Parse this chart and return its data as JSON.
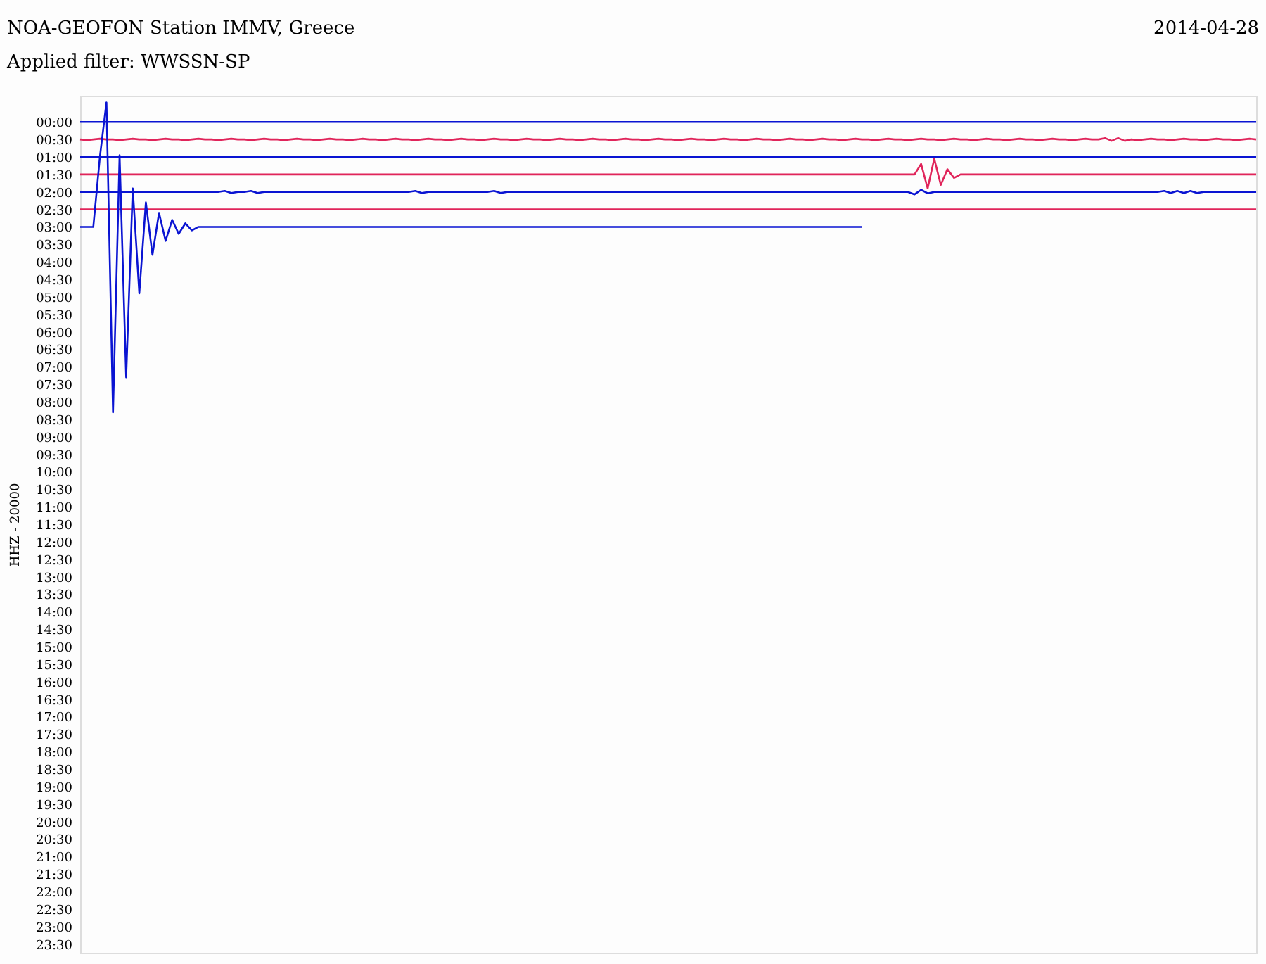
{
  "chart_data": {
    "type": "line",
    "title": "NOA-GEOFON Station IMMV, Greece",
    "subtitle": "Applied filter: WWSSN-SP",
    "annotations": [
      "2014-04-28"
    ],
    "ylabel": "HHZ - 20000",
    "categories": [
      null,
      null,
      null,
      null,
      null,
      null,
      null,
      null,
      null,
      null,
      null,
      null,
      null,
      null,
      null,
      null,
      null,
      null,
      null,
      null,
      null,
      null,
      null,
      null,
      null,
      null,
      null,
      null,
      null,
      null,
      null,
      null,
      null,
      null,
      null,
      null,
      null,
      null,
      null,
      null,
      null,
      null,
      null,
      null,
      null,
      null,
      null,
      null,
      null,
      null,
      null,
      null,
      null,
      null,
      null,
      null,
      null,
      null,
      null,
      null,
      null,
      null,
      null,
      null,
      null,
      null,
      null,
      null,
      null,
      null,
      null,
      null,
      null,
      null,
      null,
      null,
      null,
      null,
      null,
      null,
      null,
      null,
      null,
      null,
      null,
      null,
      null,
      null,
      null,
      null,
      null,
      null,
      null,
      null,
      null,
      null,
      null,
      null,
      null,
      null,
      null,
      null,
      null,
      null,
      null,
      null,
      null,
      null,
      null,
      null,
      null,
      null,
      null,
      null,
      null,
      null,
      null,
      null,
      null,
      null,
      null,
      null,
      null,
      null,
      null,
      null,
      null,
      null,
      null,
      null,
      null,
      null,
      null,
      null,
      null,
      null,
      null,
      null,
      null,
      null,
      null,
      null,
      null,
      null,
      null,
      null,
      null,
      null,
      null,
      null,
      null,
      null,
      null,
      null,
      null,
      null,
      null,
      null,
      null,
      null,
      null,
      null,
      null,
      null,
      null,
      null,
      null,
      null,
      null,
      null,
      null,
      null,
      null,
      null,
      null,
      null,
      null,
      null,
      null,
      null
    ],
    "ylim": [
      23.75,
      -0.75
    ],
    "tick_labels": "y",
    "grid": false,
    "legend": false,
    "marker": "none",
    "line_style": "solid",
    "yticks": [
      {
        "value": 0,
        "label": "00:00"
      },
      {
        "value": 0.5,
        "label": "00:30"
      },
      {
        "value": 1,
        "label": "01:00"
      },
      {
        "value": 1.5,
        "label": "01:30"
      },
      {
        "value": 2,
        "label": "02:00"
      },
      {
        "value": 2.5,
        "label": "02:30"
      },
      {
        "value": 3,
        "label": "03:00"
      },
      {
        "value": 3.5,
        "label": "03:30"
      },
      {
        "value": 4,
        "label": "04:00"
      },
      {
        "value": 4.5,
        "label": "04:30"
      },
      {
        "value": 5,
        "label": "05:00"
      },
      {
        "value": 5.5,
        "label": "05:30"
      },
      {
        "value": 6,
        "label": "06:00"
      },
      {
        "value": 6.5,
        "label": "06:30"
      },
      {
        "value": 7,
        "label": "07:00"
      },
      {
        "value": 7.5,
        "label": "07:30"
      },
      {
        "value": 8,
        "label": "08:00"
      },
      {
        "value": 8.5,
        "label": "08:30"
      },
      {
        "value": 9,
        "label": "09:00"
      },
      {
        "value": 9.5,
        "label": "09:30"
      },
      {
        "value": 10,
        "label": "10:00"
      },
      {
        "value": 10.5,
        "label": "10:30"
      },
      {
        "value": 11,
        "label": "11:00"
      },
      {
        "value": 11.5,
        "label": "11:30"
      },
      {
        "value": 12,
        "label": "12:00"
      },
      {
        "value": 12.5,
        "label": "12:30"
      },
      {
        "value": 13,
        "label": "13:00"
      },
      {
        "value": 13.5,
        "label": "13:30"
      },
      {
        "value": 14,
        "label": "14:00"
      },
      {
        "value": 14.5,
        "label": "14:30"
      },
      {
        "value": 15,
        "label": "15:00"
      },
      {
        "value": 15.5,
        "label": "15:30"
      },
      {
        "value": 16,
        "label": "16:00"
      },
      {
        "value": 16.5,
        "label": "16:30"
      },
      {
        "value": 17,
        "label": "17:00"
      },
      {
        "value": 17.5,
        "label": "17:30"
      },
      {
        "value": 18,
        "label": "18:00"
      },
      {
        "value": 18.5,
        "label": "18:30"
      },
      {
        "value": 19,
        "label": "19:00"
      },
      {
        "value": 19.5,
        "label": "19:30"
      },
      {
        "value": 20,
        "label": "20:00"
      },
      {
        "value": 20.5,
        "label": "20:30"
      },
      {
        "value": 21,
        "label": "21:00"
      },
      {
        "value": 21.5,
        "label": "21:30"
      },
      {
        "value": 22,
        "label": "22:00"
      },
      {
        "value": 22.5,
        "label": "22:30"
      },
      {
        "value": 23,
        "label": "23:00"
      },
      {
        "value": 23.5,
        "label": "23:30"
      }
    ],
    "series": [
      {
        "color": "#0a14d2",
        "values": [
          0,
          0,
          0,
          0,
          0,
          0,
          0,
          0,
          0,
          0,
          0,
          0,
          0,
          0,
          0,
          0,
          0,
          0,
          0,
          0,
          0,
          0,
          0,
          0,
          0,
          0,
          0,
          0,
          0,
          0,
          0,
          0,
          0,
          0,
          0,
          0,
          0,
          0,
          0,
          0,
          0,
          0,
          0,
          0,
          0,
          0,
          0,
          0,
          0,
          0,
          0,
          0,
          0,
          0,
          0,
          0,
          0,
          0,
          0,
          0,
          0,
          0,
          0,
          0,
          0,
          0,
          0,
          0,
          0,
          0,
          0,
          0,
          0,
          0,
          0,
          0,
          0,
          0,
          0,
          0,
          0,
          0,
          0,
          0,
          0,
          0,
          0,
          0,
          0,
          0,
          0,
          0,
          0,
          0,
          0,
          0,
          0,
          0,
          0,
          0,
          0,
          0,
          0,
          0,
          0,
          0,
          0,
          0,
          0,
          0,
          0,
          0,
          0,
          0,
          0,
          0,
          0,
          0,
          0,
          0,
          0,
          0,
          0,
          0,
          0,
          0,
          0,
          0,
          0,
          0,
          0,
          0,
          0,
          0,
          0,
          0,
          0,
          0,
          0,
          0,
          0,
          0,
          0,
          0,
          0,
          0,
          0,
          0,
          0,
          0,
          0,
          0,
          0,
          0,
          0,
          0,
          0,
          0,
          0,
          0,
          0,
          0,
          0,
          0,
          0,
          0,
          0,
          0,
          0,
          0,
          0,
          0,
          0,
          0,
          0,
          0,
          0,
          0,
          0,
          0
        ]
      },
      {
        "color": "#e0245a",
        "values": [
          0.5,
          0.52,
          0.5,
          0.48,
          0.5,
          0.5,
          0.52,
          0.5,
          0.48,
          0.5,
          0.5,
          0.52,
          0.5,
          0.48,
          0.5,
          0.5,
          0.52,
          0.5,
          0.48,
          0.5,
          0.5,
          0.52,
          0.5,
          0.48,
          0.5,
          0.5,
          0.52,
          0.5,
          0.48,
          0.5,
          0.5,
          0.52,
          0.5,
          0.48,
          0.5,
          0.5,
          0.52,
          0.5,
          0.48,
          0.5,
          0.5,
          0.52,
          0.5,
          0.48,
          0.5,
          0.5,
          0.52,
          0.5,
          0.48,
          0.5,
          0.5,
          0.52,
          0.5,
          0.48,
          0.5,
          0.5,
          0.52,
          0.5,
          0.48,
          0.5,
          0.5,
          0.52,
          0.5,
          0.48,
          0.5,
          0.5,
          0.52,
          0.5,
          0.48,
          0.5,
          0.5,
          0.52,
          0.5,
          0.48,
          0.5,
          0.5,
          0.52,
          0.5,
          0.48,
          0.5,
          0.5,
          0.52,
          0.5,
          0.48,
          0.5,
          0.5,
          0.52,
          0.5,
          0.48,
          0.5,
          0.5,
          0.52,
          0.5,
          0.48,
          0.5,
          0.5,
          0.52,
          0.5,
          0.48,
          0.5,
          0.5,
          0.52,
          0.5,
          0.48,
          0.5,
          0.5,
          0.52,
          0.5,
          0.48,
          0.5,
          0.5,
          0.52,
          0.5,
          0.48,
          0.5,
          0.5,
          0.52,
          0.5,
          0.48,
          0.5,
          0.5,
          0.52,
          0.5,
          0.48,
          0.5,
          0.5,
          0.52,
          0.5,
          0.48,
          0.5,
          0.5,
          0.52,
          0.5,
          0.48,
          0.5,
          0.5,
          0.52,
          0.5,
          0.48,
          0.5,
          0.5,
          0.52,
          0.5,
          0.48,
          0.5,
          0.5,
          0.52,
          0.5,
          0.48,
          0.5,
          0.5,
          0.52,
          0.5,
          0.48,
          0.5,
          0.5,
          0.46,
          0.54,
          0.46,
          0.54,
          0.5,
          0.52,
          0.5,
          0.48,
          0.5,
          0.5,
          0.52,
          0.5,
          0.48,
          0.5,
          0.5,
          0.52,
          0.5,
          0.48,
          0.5,
          0.5,
          0.52,
          0.5,
          0.48,
          0.5
        ]
      },
      {
        "color": "#0a14d2",
        "values": [
          1,
          1,
          1,
          1,
          1,
          1,
          1,
          1,
          1,
          1,
          1,
          1,
          1,
          1,
          1,
          1,
          1,
          1,
          1,
          1,
          1,
          1,
          1,
          1,
          1,
          1,
          1,
          1,
          1,
          1,
          1,
          1,
          1,
          1,
          1,
          1,
          1,
          1,
          1,
          1,
          1,
          1,
          1,
          1,
          1,
          1,
          1,
          1,
          1,
          1,
          1,
          1,
          1,
          1,
          1,
          1,
          1,
          1,
          1,
          1,
          1,
          1,
          1,
          1,
          1,
          1,
          1,
          1,
          1,
          1,
          1,
          1,
          1,
          1,
          1,
          1,
          1,
          1,
          1,
          1,
          1,
          1,
          1,
          1,
          1,
          1,
          1,
          1,
          1,
          1,
          1,
          1,
          1,
          1,
          1,
          1,
          1,
          1,
          1,
          1,
          1,
          1,
          1,
          1,
          1,
          1,
          1,
          1,
          1,
          1,
          1,
          1,
          1,
          1,
          1,
          1,
          1,
          1,
          1,
          1,
          1,
          1,
          1,
          1,
          1,
          1,
          1,
          1,
          1,
          1,
          1,
          1,
          1,
          1,
          1,
          1,
          1,
          1,
          1,
          1,
          1,
          1,
          1,
          1,
          1,
          1,
          1,
          1,
          1,
          1,
          1,
          1,
          1,
          1,
          1,
          1,
          1,
          1,
          1,
          1,
          1,
          1,
          1,
          1,
          1,
          1,
          1,
          1,
          1,
          1,
          1,
          1,
          1,
          1,
          1,
          1,
          1,
          1,
          1,
          1
        ]
      },
      {
        "color": "#e0245a",
        "values": [
          1.5,
          1.5,
          1.5,
          1.5,
          1.5,
          1.5,
          1.5,
          1.5,
          1.5,
          1.5,
          1.5,
          1.5,
          1.5,
          1.5,
          1.5,
          1.5,
          1.5,
          1.5,
          1.5,
          1.5,
          1.5,
          1.5,
          1.5,
          1.5,
          1.5,
          1.5,
          1.5,
          1.5,
          1.5,
          1.5,
          1.5,
          1.5,
          1.5,
          1.5,
          1.5,
          1.5,
          1.5,
          1.5,
          1.5,
          1.5,
          1.5,
          1.5,
          1.5,
          1.5,
          1.5,
          1.5,
          1.5,
          1.5,
          1.5,
          1.5,
          1.5,
          1.5,
          1.5,
          1.5,
          1.5,
          1.5,
          1.5,
          1.5,
          1.5,
          1.5,
          1.5,
          1.5,
          1.5,
          1.5,
          1.5,
          1.5,
          1.5,
          1.5,
          1.5,
          1.5,
          1.5,
          1.5,
          1.5,
          1.5,
          1.5,
          1.5,
          1.5,
          1.5,
          1.5,
          1.5,
          1.5,
          1.5,
          1.5,
          1.5,
          1.5,
          1.5,
          1.5,
          1.5,
          1.5,
          1.5,
          1.5,
          1.5,
          1.5,
          1.5,
          1.5,
          1.5,
          1.5,
          1.5,
          1.5,
          1.5,
          1.5,
          1.5,
          1.5,
          1.5,
          1.5,
          1.5,
          1.5,
          1.5,
          1.5,
          1.5,
          1.5,
          1.5,
          1.5,
          1.5,
          1.5,
          1.5,
          1.5,
          1.5,
          1.5,
          1.5,
          1.5,
          1.5,
          1.5,
          1.5,
          1.5,
          1.5,
          1.5,
          1.5,
          1.2,
          1.9,
          1.05,
          1.8,
          1.35,
          1.6,
          1.5,
          1.5,
          1.5,
          1.5,
          1.5,
          1.5,
          1.5,
          1.5,
          1.5,
          1.5,
          1.5,
          1.5,
          1.5,
          1.5,
          1.5,
          1.5,
          1.5,
          1.5,
          1.5,
          1.5,
          1.5,
          1.5,
          1.5,
          1.5,
          1.5,
          1.5,
          1.5,
          1.5,
          1.5,
          1.5,
          1.5,
          1.5,
          1.5,
          1.5,
          1.5,
          1.5,
          1.5,
          1.5,
          1.5,
          1.5,
          1.5,
          1.5,
          1.5,
          1.5,
          1.5,
          1.5
        ]
      },
      {
        "color": "#0a14d2",
        "values": [
          2,
          2,
          2,
          2,
          2,
          2,
          2,
          2,
          2,
          2,
          2,
          2,
          2,
          2,
          2,
          2,
          2,
          2,
          2,
          2,
          2,
          2,
          1.97,
          2.03,
          2,
          2,
          1.97,
          2.03,
          2,
          2,
          2,
          2,
          2,
          2,
          2,
          2,
          2,
          2,
          2,
          2,
          2,
          2,
          2,
          2,
          2,
          2,
          2,
          2,
          2,
          2,
          2,
          1.97,
          2.03,
          2,
          2,
          2,
          2,
          2,
          2,
          2,
          2,
          2,
          2,
          1.97,
          2.03,
          2,
          2,
          2,
          2,
          2,
          2,
          2,
          2,
          2,
          2,
          2,
          2,
          2,
          2,
          2,
          2,
          2,
          2,
          2,
          2,
          2,
          2,
          2,
          2,
          2,
          2,
          2,
          2,
          2,
          2,
          2,
          2,
          2,
          2,
          2,
          2,
          2,
          2,
          2,
          2,
          2,
          2,
          2,
          2,
          2,
          2,
          2,
          2,
          2,
          2,
          2,
          2,
          2,
          2,
          2,
          2,
          2,
          2,
          2,
          2,
          2,
          2,
          2.07,
          1.94,
          2.04,
          2,
          2,
          2,
          2,
          2,
          2,
          2,
          2,
          2,
          2,
          2,
          2,
          2,
          2,
          2,
          2,
          2,
          2,
          2,
          2,
          2,
          2,
          2,
          2,
          2,
          2,
          2,
          2,
          2,
          2,
          2,
          2,
          2,
          2,
          2,
          1.97,
          2.03,
          1.97,
          2.03,
          1.97,
          2.03,
          2,
          2,
          2,
          2,
          2,
          2,
          2,
          2,
          2
        ]
      },
      {
        "color": "#e0245a",
        "values": [
          2.5,
          2.5,
          2.5,
          2.5,
          2.5,
          2.5,
          2.5,
          2.5,
          2.5,
          2.5,
          2.5,
          2.5,
          2.5,
          2.5,
          2.5,
          2.5,
          2.5,
          2.5,
          2.5,
          2.5,
          2.5,
          2.5,
          2.5,
          2.5,
          2.5,
          2.5,
          2.5,
          2.5,
          2.5,
          2.5,
          2.5,
          2.5,
          2.5,
          2.5,
          2.5,
          2.5,
          2.5,
          2.5,
          2.5,
          2.5,
          2.5,
          2.5,
          2.5,
          2.5,
          2.5,
          2.5,
          2.5,
          2.5,
          2.5,
          2.5,
          2.5,
          2.5,
          2.5,
          2.5,
          2.5,
          2.5,
          2.5,
          2.5,
          2.5,
          2.5,
          2.5,
          2.5,
          2.5,
          2.5,
          2.5,
          2.5,
          2.5,
          2.5,
          2.5,
          2.5,
          2.5,
          2.5,
          2.5,
          2.5,
          2.5,
          2.5,
          2.5,
          2.5,
          2.5,
          2.5,
          2.5,
          2.5,
          2.5,
          2.5,
          2.5,
          2.5,
          2.5,
          2.5,
          2.5,
          2.5,
          2.5,
          2.5,
          2.5,
          2.5,
          2.5,
          2.5,
          2.5,
          2.5,
          2.5,
          2.5,
          2.5,
          2.5,
          2.5,
          2.5,
          2.5,
          2.5,
          2.5,
          2.5,
          2.5,
          2.5,
          2.5,
          2.5,
          2.5,
          2.5,
          2.5,
          2.5,
          2.5,
          2.5,
          2.5,
          2.5,
          2.5,
          2.5,
          2.5,
          2.5,
          2.5,
          2.5,
          2.5,
          2.5,
          2.5,
          2.5,
          2.5,
          2.5,
          2.5,
          2.5,
          2.5,
          2.5,
          2.5,
          2.5,
          2.5,
          2.5,
          2.5,
          2.5,
          2.5,
          2.5,
          2.5,
          2.5,
          2.5,
          2.5,
          2.5,
          2.5,
          2.5,
          2.5,
          2.5,
          2.5,
          2.5,
          2.5,
          2.5,
          2.5,
          2.5,
          2.5,
          2.5,
          2.5,
          2.5,
          2.5,
          2.5,
          2.5,
          2.5,
          2.5,
          2.5,
          2.5,
          2.5,
          2.5,
          2.5,
          2.5,
          2.5,
          2.5,
          2.5,
          2.5,
          2.5,
          2.5
        ]
      },
      {
        "color": "#0a14d2",
        "values": [
          3,
          3,
          3,
          1.0,
          -0.56,
          8.3,
          0.95,
          7.3,
          1.9,
          4.9,
          2.3,
          3.8,
          2.6,
          3.4,
          2.8,
          3.2,
          2.9,
          3.1,
          3,
          3,
          3,
          3,
          3,
          3,
          3,
          3,
          3,
          3,
          3,
          3,
          3,
          3,
          3,
          3,
          3,
          3,
          3,
          3,
          3,
          3,
          3,
          3,
          3,
          3,
          3,
          3,
          3,
          3,
          3,
          3,
          3,
          3,
          3,
          3,
          3,
          3,
          3,
          3,
          3,
          3,
          3,
          3,
          3,
          3,
          3,
          3,
          3,
          3,
          3,
          3,
          3,
          3,
          3,
          3,
          3,
          3,
          3,
          3,
          3,
          3,
          3,
          3,
          3,
          3,
          3,
          3,
          3,
          3,
          3,
          3,
          3,
          3,
          3,
          3,
          3,
          3,
          3,
          3,
          3,
          3,
          3,
          3,
          3,
          3,
          3,
          3,
          3,
          3,
          3,
          3,
          3,
          3,
          3,
          3,
          3,
          3,
          3,
          3,
          3,
          3,
          null,
          null,
          null,
          null,
          null,
          null,
          null,
          null,
          null,
          null,
          null,
          null,
          null,
          null,
          null,
          null,
          null,
          null,
          null,
          null,
          null,
          null,
          null,
          null,
          null,
          null,
          null,
          null,
          null,
          null,
          null,
          null,
          null,
          null,
          null,
          null,
          null,
          null,
          null,
          null,
          null,
          null,
          null,
          null,
          null,
          null,
          null,
          null,
          null,
          null,
          null,
          null,
          null,
          null,
          null,
          null,
          null,
          null,
          null,
          null
        ]
      }
    ]
  }
}
